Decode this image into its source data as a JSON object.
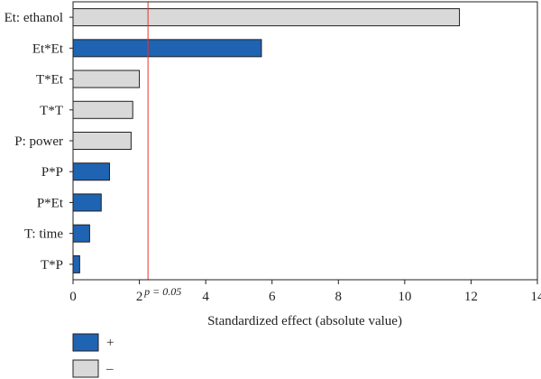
{
  "chart_data": {
    "type": "bar",
    "orientation": "horizontal",
    "title": "",
    "xlabel": "Standardized effect (absolute value)",
    "ylabel": "",
    "xlim": [
      0,
      14
    ],
    "x_ticks": [
      0,
      2,
      4,
      6,
      8,
      10,
      12,
      14
    ],
    "grid": false,
    "categories": [
      "Et: ethanol",
      "Et*Et",
      "T*Et",
      "T*T",
      "P: power",
      "P*P",
      "P*Et",
      "T: time",
      "T*P"
    ],
    "values": [
      11.65,
      5.68,
      2.0,
      1.8,
      1.75,
      1.1,
      0.85,
      0.5,
      0.2
    ],
    "signs": [
      "-",
      "+",
      "-",
      "-",
      "-",
      "+",
      "+",
      "+",
      "+"
    ],
    "reference_line": {
      "value": 2.26,
      "label": "p = 0.05",
      "color": "#e8332a"
    },
    "legend": [
      {
        "symbol": "+",
        "label": "+",
        "color": "#1f63b3"
      },
      {
        "symbol": "-",
        "label": "–",
        "color": "#d9d9d9"
      }
    ],
    "colors": {
      "positive": "#1f63b3",
      "negative": "#d9d9d9",
      "axis": "#231f20",
      "bar_stroke": "#231f20"
    }
  }
}
